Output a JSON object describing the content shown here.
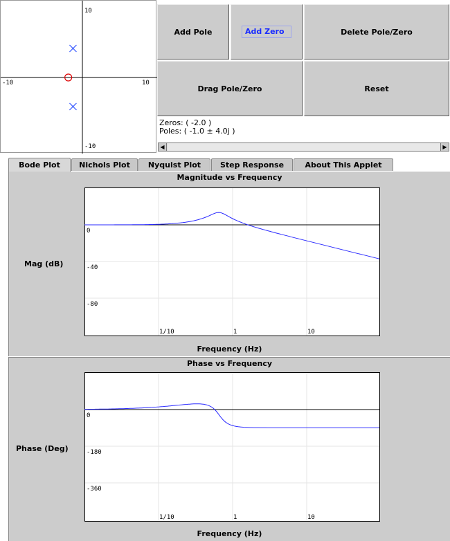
{
  "pz_plot": {
    "ticks": {
      "top": "10",
      "bottom": "-10",
      "left": "-10",
      "right": "10"
    },
    "range": [
      -10,
      10
    ],
    "zeros": [
      {
        "re": -2.0,
        "im": 0
      }
    ],
    "poles": [
      {
        "re": -1.0,
        "im": 4.0
      },
      {
        "re": -1.0,
        "im": -4.0
      }
    ],
    "zero_color": "#dd0000",
    "pole_color": "#3355ff"
  },
  "buttons": {
    "add_pole": "Add Pole",
    "add_zero": "Add Zero",
    "delete": "Delete Pole/Zero",
    "drag": "Drag Pole/Zero",
    "reset": "Reset"
  },
  "info": {
    "zeros_text": "Zeros: ( -2.0 )",
    "poles_text": "Poles: ( -1.0 ± 4.0j )"
  },
  "tabs": [
    "Bode Plot",
    "Nichols Plot",
    "Nyquist Plot",
    "Step Response",
    "About This Applet"
  ],
  "magnitude": {
    "title": "Magnitude vs Frequency",
    "ylabel": "Mag (dB)",
    "xlabel": "Frequency (Hz)",
    "yticks": [
      "0",
      "-40",
      "-80"
    ],
    "xticks": [
      "1/10",
      "1",
      "10"
    ]
  },
  "phase": {
    "title": "Phase vs Frequency",
    "ylabel": "Phase (Deg)",
    "xlabel": "Frequency (Hz)",
    "yticks": [
      "0",
      "-180",
      "-360"
    ],
    "xticks": [
      "1/10",
      "1",
      "10"
    ]
  },
  "colors": {
    "curve": "#2a2aff",
    "panel": "#cccccc"
  }
}
